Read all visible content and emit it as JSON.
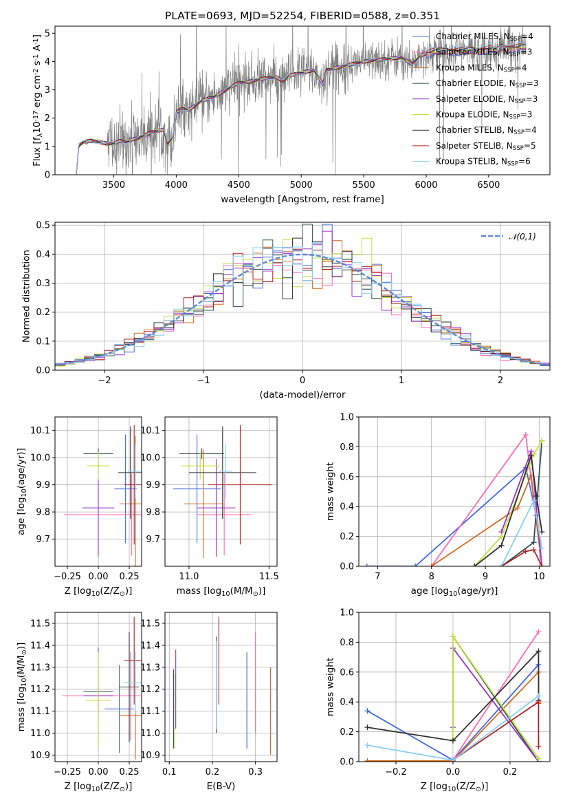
{
  "figure": {
    "title": "PLATE=0693, MJD=52254, FIBERID=0588, z=0.351"
  },
  "series_styles": [
    {
      "color": "#4169E1"
    },
    {
      "color": "#ff69b4"
    },
    {
      "color": "#d2691e"
    },
    {
      "color": "#2f4f4f"
    },
    {
      "color": "#9932cc"
    },
    {
      "color": "#c0e040"
    },
    {
      "color": "#303030"
    },
    {
      "color": "#b22222"
    },
    {
      "color": "#87cefa"
    }
  ],
  "chart_data": [
    {
      "id": "spectrum",
      "type": "line",
      "xlabel": "wavelength [Angstrom, rest frame]",
      "ylabel": "Flux [f$_\\lambda$10$^{-17}$ erg cm$^{-2}$ s$^{-1}$ A$^{-1}$]",
      "xlim": [
        3030,
        6990
      ],
      "ylim": [
        0,
        5.25
      ],
      "xticks": [
        3500,
        4000,
        4500,
        5000,
        5500,
        6000,
        6500
      ],
      "yticks": [
        0,
        1,
        2,
        3,
        4,
        5
      ],
      "data_color": "#808080",
      "legend_position": "top-right",
      "legend": [
        {
          "pre": "Chabrier MILES, N",
          "sub": "SSP",
          "post": "=4"
        },
        {
          "pre": "Salpeter MILES, N",
          "sub": "SSP",
          "post": "=3"
        },
        {
          "pre": "Kroupa MILES, N",
          "sub": "SSP",
          "post": "=4"
        },
        {
          "pre": "Chabrier ELODIE, N",
          "sub": "SSP",
          "post": "=3"
        },
        {
          "pre": "Salpeter ELODIE, N",
          "sub": "SSP",
          "post": "=3"
        },
        {
          "pre": "Kroupa ELODIE, N",
          "sub": "SSP",
          "post": "=3"
        },
        {
          "pre": "Chabrier STELIB, N",
          "sub": "SSP",
          "post": "=4"
        },
        {
          "pre": "Salpeter STELIB, N",
          "sub": "SSP",
          "post": "=5"
        },
        {
          "pre": "Kroupa STELIB, N",
          "sub": "SSP",
          "post": "=6"
        }
      ],
      "model_continuum": {
        "x": [
          3200,
          3220,
          3260,
          3300,
          3350,
          3400,
          3450,
          3500,
          3550,
          3600,
          3650,
          3700,
          3750,
          3800,
          3850,
          3900,
          3930,
          3970,
          4000,
          4050,
          4100,
          4200,
          4300,
          4400,
          4500,
          4600,
          4700,
          4800,
          4861,
          4900,
          5000,
          5100,
          5175,
          5200,
          5300,
          5400,
          5500,
          5600,
          5700,
          5800,
          5890,
          5950,
          6000,
          6100,
          6200,
          6300,
          6400,
          6500,
          6563,
          6600,
          6700,
          6800
        ],
        "y": [
          0.0,
          1.05,
          1.15,
          1.2,
          1.18,
          1.15,
          1.1,
          1.1,
          1.2,
          1.15,
          1.25,
          1.3,
          1.4,
          1.5,
          1.55,
          1.6,
          1.1,
          1.3,
          2.2,
          2.35,
          2.3,
          2.6,
          2.75,
          3.0,
          3.25,
          3.3,
          3.4,
          3.45,
          3.3,
          3.5,
          3.6,
          3.7,
          3.2,
          3.7,
          3.8,
          3.9,
          4.0,
          4.05,
          4.1,
          4.15,
          3.9,
          4.2,
          4.3,
          4.35,
          4.4,
          4.35,
          4.4,
          4.45,
          4.35,
          4.5,
          4.5,
          4.5
        ]
      }
    },
    {
      "id": "residuals",
      "type": "line",
      "xlabel": "(data-model)/error",
      "ylabel": "Normed distribution",
      "xlim": [
        -2.5,
        2.5
      ],
      "ylim": [
        0,
        0.51
      ],
      "xticks": [
        -2,
        -1,
        0,
        1,
        2
      ],
      "yticks": [
        0.0,
        0.1,
        0.2,
        0.3,
        0.4,
        0.5
      ],
      "grid": true,
      "legend_position": "top-right",
      "legend": "$\\mathcal{N}(0,1)$",
      "normal_curve": {
        "mean": 0,
        "sigma": 1,
        "color": "#5b8ad6"
      }
    },
    {
      "id": "age-vs-Z",
      "type": "scatter",
      "xlabel": "Z [log$_{10}$($Z/Z_\\odot$)]",
      "ylabel": "age  [log$_{10}$($age/yr$)]",
      "xlim": [
        -0.35,
        0.35
      ],
      "ylim": [
        9.6,
        10.15
      ],
      "xticks": [
        -0.25,
        0.0,
        0.25
      ],
      "yticks": [
        9.7,
        9.8,
        9.9,
        10.0,
        10.1
      ],
      "grid": true,
      "points": [
        {
          "s": 0,
          "x": 0.22,
          "y": 9.885,
          "xerr": 0.09,
          "yerr": 0.2
        },
        {
          "s": 1,
          "x": 0.27,
          "y": 9.79,
          "xerr": 0.55,
          "yerr": 0.15
        },
        {
          "s": 2,
          "x": 0.3,
          "y": 9.83,
          "xerr": 0.13,
          "yerr": 0.25
        },
        {
          "s": 3,
          "x": 0.0,
          "y": 10.015,
          "xerr": 0.12,
          "yerr": 0.02
        },
        {
          "s": 4,
          "x": 0.0,
          "y": 9.815,
          "xerr": 0.13,
          "yerr": 0.18
        },
        {
          "s": 5,
          "x": 0.0,
          "y": 9.97,
          "xerr": 0.09,
          "yerr": 0.05
        },
        {
          "s": 6,
          "x": 0.26,
          "y": 9.945,
          "xerr": 0.1,
          "yerr": 0.17
        },
        {
          "s": 7,
          "x": 0.29,
          "y": 9.9,
          "xerr": 0.08,
          "yerr": 0.22
        },
        {
          "s": 8,
          "x": 0.3,
          "y": 9.95,
          "xerr": 0.06,
          "yerr": 0.1
        }
      ]
    },
    {
      "id": "age-vs-mass",
      "type": "scatter",
      "xlabel": "mass [log$_{10}$($M/M_\\odot$)]",
      "xlim": [
        10.85,
        11.55
      ],
      "ylim": [
        9.6,
        10.15
      ],
      "xticks": [
        11.0,
        11.5
      ],
      "yticks": [
        9.7,
        9.8,
        9.9,
        10.0,
        10.1
      ],
      "grid": true,
      "points": [
        {
          "s": 0,
          "x": 11.05,
          "y": 9.885,
          "xerr": 0.15,
          "yerr": 0.2
        },
        {
          "s": 1,
          "x": 11.22,
          "y": 9.79,
          "xerr": 0.17,
          "yerr": 0.15
        },
        {
          "s": 2,
          "x": 11.09,
          "y": 9.83,
          "xerr": 0.12,
          "yerr": 0.2
        },
        {
          "s": 3,
          "x": 11.08,
          "y": 10.015,
          "xerr": 0.14,
          "yerr": 0.02
        },
        {
          "s": 4,
          "x": 11.17,
          "y": 9.815,
          "xerr": 0.12,
          "yerr": 0.18
        },
        {
          "s": 5,
          "x": 11.07,
          "y": 9.97,
          "xerr": 0.12,
          "yerr": 0.05
        },
        {
          "s": 6,
          "x": 11.21,
          "y": 9.945,
          "xerr": 0.21,
          "yerr": 0.17
        },
        {
          "s": 7,
          "x": 11.32,
          "y": 9.9,
          "xerr": 0.2,
          "yerr": 0.22
        },
        {
          "s": 8,
          "x": 11.23,
          "y": 9.95,
          "xerr": 0.04,
          "yerr": 0.1
        }
      ]
    },
    {
      "id": "weight-vs-age",
      "type": "line",
      "xlabel": "age  [log$_{10}$($age/yr$)]",
      "ylabel": "mass weight",
      "xlim": [
        6.65,
        10.2
      ],
      "ylim": [
        0,
        1.0
      ],
      "xticks": [
        7,
        8,
        9,
        10
      ],
      "yticks": [
        0.0,
        0.2,
        0.4,
        0.6,
        0.8,
        1.0
      ],
      "grid": true,
      "series": [
        {
          "s": 0,
          "x": [
            6.8,
            7.7,
            9.75,
            9.95
          ],
          "y": [
            0.0,
            0.0,
            0.66,
            0.34
          ]
        },
        {
          "s": 1,
          "x": [
            8.0,
            9.75,
            10.05
          ],
          "y": [
            0.0,
            0.88,
            0.0
          ]
        },
        {
          "s": 2,
          "x": [
            8.0,
            9.6,
            9.85,
            10.05
          ],
          "y": [
            0.0,
            0.39,
            0.61,
            0.0
          ]
        },
        {
          "s": 3,
          "x": [
            9.3,
            9.9,
            10.05
          ],
          "y": [
            0.0,
            0.16,
            0.84
          ]
        },
        {
          "s": 4,
          "x": [
            9.3,
            9.85,
            10.05
          ],
          "y": [
            0.23,
            0.77,
            0.0
          ]
        },
        {
          "s": 5,
          "x": [
            8.8,
            9.3,
            9.9,
            10.05
          ],
          "y": [
            0.0,
            0.2,
            0.75,
            0.84
          ]
        },
        {
          "s": 6,
          "x": [
            8.8,
            9.3,
            9.85,
            9.95,
            10.05
          ],
          "y": [
            0.0,
            0.14,
            0.74,
            0.47,
            0.23
          ]
        },
        {
          "s": 7,
          "x": [
            9.3,
            9.75,
            9.9,
            10.05
          ],
          "y": [
            0.0,
            0.1,
            0.11,
            0.0
          ]
        },
        {
          "s": 8,
          "x": [
            9.3,
            9.9,
            10.05
          ],
          "y": [
            0.0,
            0.44,
            0.12
          ]
        }
      ]
    },
    {
      "id": "mass-vs-Z",
      "type": "scatter",
      "xlabel": "Z [log$_{10}$($Z/Z_\\odot$)]",
      "ylabel": "mass [log$_{10}$($M/M_\\odot$)]",
      "xlim": [
        -0.35,
        0.35
      ],
      "ylim": [
        10.87,
        11.55
      ],
      "xticks": [
        -0.25,
        0.0,
        0.25
      ],
      "yticks": [
        10.9,
        11.0,
        11.1,
        11.2,
        11.3,
        11.4,
        11.5
      ],
      "grid": true,
      "points": [
        {
          "s": 0,
          "x": 0.17,
          "y": 11.11,
          "xerr": 0.12,
          "yerr": 0.2
        },
        {
          "s": 1,
          "x": 0.26,
          "y": 11.17,
          "xerr": 0.55,
          "yerr": 0.2
        },
        {
          "s": 2,
          "x": 0.3,
          "y": 11.08,
          "xerr": 0.13,
          "yerr": 0.2
        },
        {
          "s": 3,
          "x": 0.0,
          "y": 11.19,
          "xerr": 0.12,
          "yerr": 0.1
        },
        {
          "s": 4,
          "x": 0.0,
          "y": 11.17,
          "xerr": 0.12,
          "yerr": 0.22
        },
        {
          "s": 5,
          "x": 0.0,
          "y": 11.15,
          "xerr": 0.1,
          "yerr": 0.22
        },
        {
          "s": 6,
          "x": 0.25,
          "y": 11.21,
          "xerr": 0.08,
          "yerr": 0.25
        },
        {
          "s": 7,
          "x": 0.29,
          "y": 11.33,
          "xerr": 0.08,
          "yerr": 0.2
        },
        {
          "s": 8,
          "x": 0.3,
          "y": 11.23,
          "xerr": 0.1,
          "yerr": 0.14
        }
      ]
    },
    {
      "id": "mass-vs-EBV",
      "type": "scatter",
      "xlabel": "E(B-V)",
      "xlim": [
        0.09,
        0.35
      ],
      "ylim": [
        10.87,
        11.55
      ],
      "xticks": [
        0.1,
        0.2,
        0.3
      ],
      "yticks": [
        10.9,
        11.0,
        11.1,
        11.2,
        11.3,
        11.4,
        11.5
      ],
      "grid": true,
      "points": [
        {
          "s": 0,
          "x": 0.28,
          "y": 11.15,
          "xerr": 0,
          "yerr": 0.22
        },
        {
          "s": 1,
          "x": 0.3,
          "y": 11.23,
          "xerr": 0,
          "yerr": 0.23
        },
        {
          "s": 2,
          "x": 0.335,
          "y": 11.1,
          "xerr": 0,
          "yerr": 0.2
        },
        {
          "s": 3,
          "x": 0.11,
          "y": 11.11,
          "xerr": 0,
          "yerr": 0.18
        },
        {
          "s": 4,
          "x": 0.115,
          "y": 11.2,
          "xerr": 0,
          "yerr": 0.18
        },
        {
          "s": 5,
          "x": 0.113,
          "y": 11.1,
          "xerr": 0,
          "yerr": 0.17
        },
        {
          "s": 6,
          "x": 0.21,
          "y": 11.22,
          "xerr": 0,
          "yerr": 0.22
        },
        {
          "s": 7,
          "x": 0.215,
          "y": 11.33,
          "xerr": 0,
          "yerr": 0.2
        },
        {
          "s": 8,
          "x": 0.21,
          "y": 11.22,
          "xerr": 0,
          "yerr": 0.2
        }
      ]
    },
    {
      "id": "weight-vs-Z",
      "type": "line",
      "xlabel": "Z [log$_{10}$($Z/Z_\\odot$)]",
      "ylabel": "mass weight",
      "xlim": [
        -0.33,
        0.34
      ],
      "ylim": [
        0,
        1.0
      ],
      "xticks": [
        -0.2,
        0.0,
        0.2
      ],
      "yticks": [
        0.0,
        0.2,
        0.4,
        0.6,
        0.8,
        1.0
      ],
      "grid": true,
      "series": [
        {
          "s": 0,
          "x": [
            -0.3,
            0.0,
            0.3,
            0.3
          ],
          "y": [
            0.34,
            0.01,
            0.65,
            0.41
          ]
        },
        {
          "s": 1,
          "x": [
            0.0,
            0.3
          ],
          "y": [
            0.01,
            0.87
          ]
        },
        {
          "s": 2,
          "x": [
            -0.3,
            0.0,
            0.3,
            0.3
          ],
          "y": [
            0.005,
            0.005,
            0.6,
            0.39
          ]
        },
        {
          "s": 3,
          "x": [
            0.0,
            0.3
          ],
          "y": [
            0.84,
            0.0
          ]
        },
        {
          "s": 4,
          "x": [
            0.0,
            0.0,
            0.3
          ],
          "y": [
            0.23,
            0.76,
            0.0
          ]
        },
        {
          "s": 5,
          "x": [
            0.0,
            0.0,
            0.3
          ],
          "y": [
            0.15,
            0.84,
            0.02
          ]
        },
        {
          "s": 6,
          "x": [
            -0.3,
            0.0,
            0.3,
            0.3
          ],
          "y": [
            0.23,
            0.14,
            0.74,
            0.41
          ]
        },
        {
          "s": 7,
          "x": [
            0.0,
            0.3,
            0.3
          ],
          "y": [
            0.01,
            0.4,
            0.1
          ]
        },
        {
          "s": 8,
          "x": [
            -0.3,
            0.0,
            0.3
          ],
          "y": [
            0.11,
            0.01,
            0.44
          ]
        }
      ]
    }
  ]
}
